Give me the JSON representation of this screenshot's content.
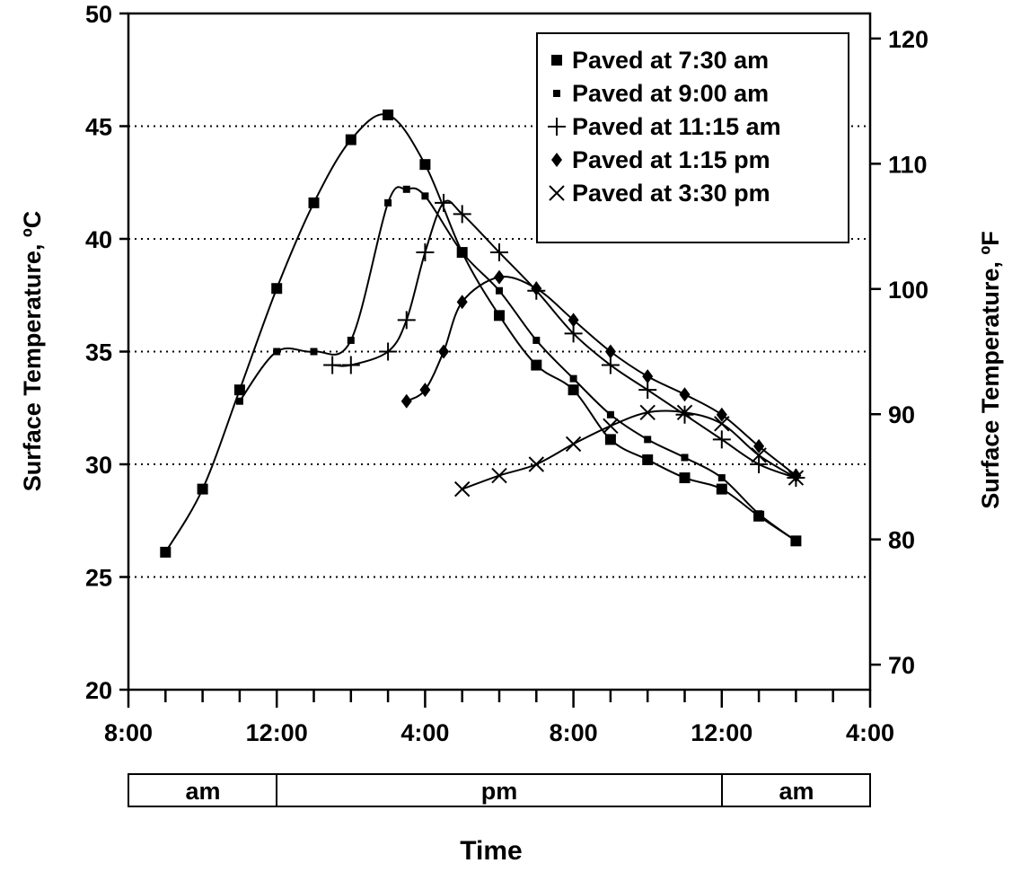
{
  "chart_data": {
    "type": "line",
    "xlabel": "Time",
    "ylabel_left": "Surface Temperature, ºC",
    "ylabel_right": "Surface Temperature, ºF",
    "xlim_hours": [
      8,
      28
    ],
    "ylim": [
      20,
      50
    ],
    "ylim_right_F": [
      68,
      122
    ],
    "y_ticks": [
      20,
      25,
      30,
      35,
      40,
      45,
      50
    ],
    "y_tick_labels": [
      "20",
      "25",
      "30",
      "35",
      "40",
      "45",
      "50"
    ],
    "y_right_ticks": [
      70,
      80,
      90,
      100,
      110,
      120
    ],
    "y_right_tick_labels": [
      "70",
      "80",
      "90",
      "100",
      "110",
      "120"
    ],
    "x_major_ticks": [
      8,
      12,
      16,
      20,
      24,
      28
    ],
    "x_tick_labels": [
      "8:00",
      "12:00",
      "4:00",
      "8:00",
      "12:00",
      "4:00"
    ],
    "gridlines_y": [
      25,
      30,
      35,
      40,
      45
    ],
    "grid": "horizontal dotted",
    "period_bands": [
      {
        "label": "am",
        "from": 8,
        "to": 12
      },
      {
        "label": "pm",
        "from": 12,
        "to": 24
      },
      {
        "label": "am",
        "from": 24,
        "to": 28
      }
    ],
    "legend_position": "top-right",
    "series": [
      {
        "name": "Paved at 7:30 am",
        "marker": "square",
        "x": [
          9,
          10,
          11,
          12,
          13,
          14,
          15,
          16,
          17,
          18,
          19,
          20,
          21,
          22,
          23,
          24,
          25,
          26
        ],
        "y": [
          26.1,
          28.9,
          33.3,
          37.8,
          41.6,
          44.4,
          45.5,
          43.3,
          39.4,
          36.6,
          34.4,
          33.3,
          31.1,
          30.2,
          29.4,
          28.9,
          27.7,
          26.6
        ]
      },
      {
        "name": "Paved at 9:00 am",
        "marker": "small-square",
        "x": [
          11,
          12,
          13,
          14,
          15,
          15.5,
          16,
          17,
          18,
          19,
          20,
          21,
          22,
          23,
          24,
          25,
          26
        ],
        "y": [
          32.8,
          35.0,
          35.0,
          35.5,
          41.6,
          42.2,
          41.9,
          39.4,
          37.7,
          35.5,
          33.8,
          32.2,
          31.1,
          30.3,
          29.4,
          27.8,
          26.6
        ]
      },
      {
        "name": "Paved at 11:15 am",
        "marker": "plus",
        "x": [
          13.5,
          14,
          15,
          15.5,
          16,
          16.5,
          17,
          18,
          19,
          20,
          21,
          22,
          23,
          24,
          25,
          26
        ],
        "y": [
          34.4,
          34.4,
          35.0,
          36.4,
          39.4,
          41.6,
          41.1,
          39.4,
          37.7,
          35.8,
          34.4,
          33.3,
          32.2,
          31.1,
          30.0,
          29.4
        ]
      },
      {
        "name": "Paved at 1:15 pm",
        "marker": "diamond",
        "x": [
          15.5,
          16,
          16.5,
          17,
          18,
          19,
          20,
          21,
          22,
          23,
          24,
          25,
          26
        ],
        "y": [
          32.8,
          33.3,
          35.0,
          37.2,
          38.3,
          37.8,
          36.4,
          35.0,
          33.9,
          33.1,
          32.2,
          30.8,
          29.5
        ]
      },
      {
        "name": "Paved at 3:30 pm",
        "marker": "x",
        "x": [
          17,
          18,
          19,
          20,
          21,
          22,
          23,
          24,
          25,
          26
        ],
        "y": [
          28.9,
          29.5,
          30.0,
          30.9,
          31.7,
          32.3,
          32.3,
          31.8,
          30.4,
          29.4
        ]
      }
    ]
  }
}
